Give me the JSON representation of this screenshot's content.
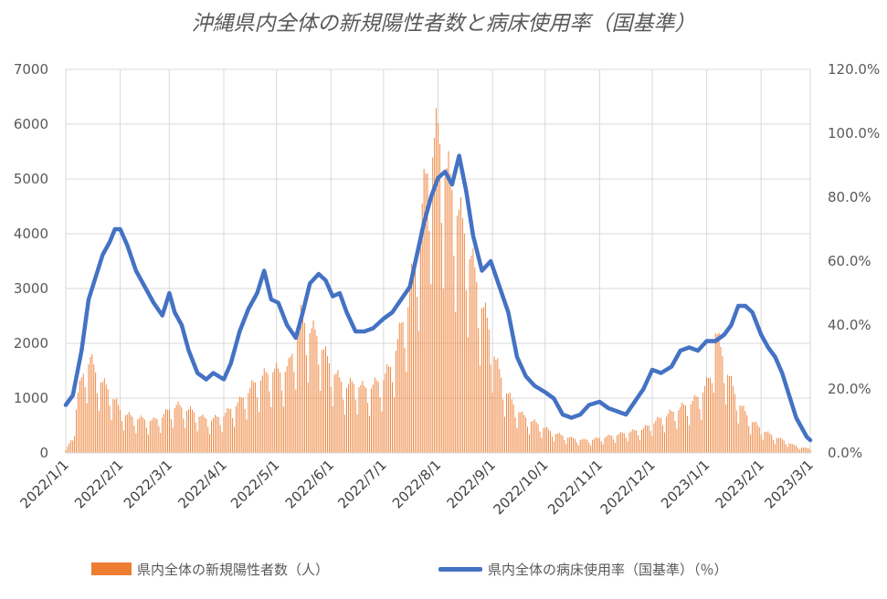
{
  "chart_data": {
    "type": "bar+line",
    "title": "沖縄県内全体の新規陽性者数と病床使用率（国基準）",
    "x_tick_labels": [
      "2022/1/1",
      "2022/2/1",
      "2022/3/1",
      "2022/4/1",
      "2022/5/1",
      "2022/6/1",
      "2022/7/1",
      "2022/8/1",
      "2022/9/1",
      "2022/10/1",
      "2022/11/1",
      "2022/12/1",
      "2023/1/1",
      "2023/2/1",
      "2023/3/1"
    ],
    "x_range": [
      "2022-01-01",
      "2023-03-01"
    ],
    "y_left": {
      "min": 0,
      "max": 7000,
      "ticks": [
        "0",
        "1000",
        "2000",
        "3000",
        "4000",
        "5000",
        "6000",
        "7000"
      ]
    },
    "y_right": {
      "min": 0,
      "max": 120,
      "ticks": [
        "0.0%",
        "20.0%",
        "40.0%",
        "60.0%",
        "80.0%",
        "100.0%",
        "120.0%"
      ]
    },
    "grid": "horizontal",
    "legend_position": "bottom",
    "series": [
      {
        "name": "県内全体の新規陽性者数（人）",
        "type": "bar",
        "axis": "left",
        "color": "#ED7D31",
        "points": [
          [
            "2022-01-01",
            50
          ],
          [
            "2022-01-05",
            300
          ],
          [
            "2022-01-08",
            1100
          ],
          [
            "2022-01-12",
            1600
          ],
          [
            "2022-01-15",
            1750
          ],
          [
            "2022-01-18",
            1500
          ],
          [
            "2022-01-22",
            1300
          ],
          [
            "2022-01-26",
            1150
          ],
          [
            "2022-02-01",
            800
          ],
          [
            "2022-02-05",
            700
          ],
          [
            "2022-02-10",
            650
          ],
          [
            "2022-02-15",
            620
          ],
          [
            "2022-02-20",
            600
          ],
          [
            "2022-02-25",
            680
          ],
          [
            "2022-03-01",
            800
          ],
          [
            "2022-03-05",
            880
          ],
          [
            "2022-03-10",
            820
          ],
          [
            "2022-03-15",
            760
          ],
          [
            "2022-03-20",
            650
          ],
          [
            "2022-03-25",
            620
          ],
          [
            "2022-04-01",
            700
          ],
          [
            "2022-04-05",
            820
          ],
          [
            "2022-04-10",
            950
          ],
          [
            "2022-04-15",
            1150
          ],
          [
            "2022-04-20",
            1350
          ],
          [
            "2022-04-25",
            1450
          ],
          [
            "2022-04-29",
            1550
          ],
          [
            "2022-05-03",
            1500
          ],
          [
            "2022-05-08",
            1600
          ],
          [
            "2022-05-12",
            2100
          ],
          [
            "2022-05-15",
            2500
          ],
          [
            "2022-05-20",
            2300
          ],
          [
            "2022-05-25",
            2150
          ],
          [
            "2022-05-29",
            1800
          ],
          [
            "2022-06-01",
            1600
          ],
          [
            "2022-06-06",
            1350
          ],
          [
            "2022-06-10",
            1250
          ],
          [
            "2022-06-15",
            1300
          ],
          [
            "2022-06-20",
            1200
          ],
          [
            "2022-06-25",
            1250
          ],
          [
            "2022-07-01",
            1400
          ],
          [
            "2022-07-05",
            1600
          ],
          [
            "2022-07-10",
            2200
          ],
          [
            "2022-07-15",
            2800
          ],
          [
            "2022-07-20",
            3800
          ],
          [
            "2022-07-24",
            4800
          ],
          [
            "2022-07-28",
            5600
          ],
          [
            "2022-08-01",
            5900
          ],
          [
            "2022-08-05",
            5300
          ],
          [
            "2022-08-10",
            4800
          ],
          [
            "2022-08-15",
            4200
          ],
          [
            "2022-08-20",
            3600
          ],
          [
            "2022-08-25",
            2900
          ],
          [
            "2022-08-30",
            2300
          ],
          [
            "2022-09-03",
            1700
          ],
          [
            "2022-09-08",
            1200
          ],
          [
            "2022-09-13",
            900
          ],
          [
            "2022-09-18",
            700
          ],
          [
            "2022-09-23",
            600
          ],
          [
            "2022-09-28",
            520
          ],
          [
            "2022-10-03",
            420
          ],
          [
            "2022-10-08",
            350
          ],
          [
            "2022-10-13",
            300
          ],
          [
            "2022-10-18",
            260
          ],
          [
            "2022-10-23",
            240
          ],
          [
            "2022-10-28",
            250
          ],
          [
            "2022-11-02",
            280
          ],
          [
            "2022-11-08",
            320
          ],
          [
            "2022-11-14",
            360
          ],
          [
            "2022-11-20",
            400
          ],
          [
            "2022-11-26",
            450
          ],
          [
            "2022-12-01",
            550
          ],
          [
            "2022-12-06",
            650
          ],
          [
            "2022-12-12",
            750
          ],
          [
            "2022-12-18",
            850
          ],
          [
            "2022-12-24",
            950
          ],
          [
            "2022-12-29",
            1100
          ],
          [
            "2023-01-03",
            1400
          ],
          [
            "2023-01-06",
            2300
          ],
          [
            "2023-01-09",
            1900
          ],
          [
            "2023-01-13",
            1500
          ],
          [
            "2023-01-17",
            1100
          ],
          [
            "2023-01-21",
            850
          ],
          [
            "2023-01-25",
            650
          ],
          [
            "2023-01-30",
            500
          ],
          [
            "2023-02-04",
            380
          ],
          [
            "2023-02-09",
            300
          ],
          [
            "2023-02-14",
            230
          ],
          [
            "2023-02-19",
            150
          ],
          [
            "2023-02-24",
            100
          ],
          [
            "2023-03-01",
            80
          ]
        ]
      },
      {
        "name": "県内全体の病床使用率（国基準）（％）",
        "type": "line",
        "axis": "right",
        "color": "#4472C4",
        "points": [
          [
            "2022-01-01",
            15
          ],
          [
            "2022-01-05",
            18
          ],
          [
            "2022-01-10",
            32
          ],
          [
            "2022-01-14",
            48
          ],
          [
            "2022-01-18",
            55
          ],
          [
            "2022-01-22",
            62
          ],
          [
            "2022-01-26",
            66
          ],
          [
            "2022-01-29",
            70
          ],
          [
            "2022-02-01",
            70
          ],
          [
            "2022-02-05",
            65
          ],
          [
            "2022-02-10",
            57
          ],
          [
            "2022-02-15",
            52
          ],
          [
            "2022-02-20",
            47
          ],
          [
            "2022-02-25",
            43
          ],
          [
            "2022-03-01",
            50
          ],
          [
            "2022-03-04",
            44
          ],
          [
            "2022-03-08",
            40
          ],
          [
            "2022-03-12",
            32
          ],
          [
            "2022-03-17",
            25
          ],
          [
            "2022-03-22",
            23
          ],
          [
            "2022-03-26",
            25
          ],
          [
            "2022-04-01",
            23
          ],
          [
            "2022-04-05",
            28
          ],
          [
            "2022-04-10",
            38
          ],
          [
            "2022-04-15",
            45
          ],
          [
            "2022-04-20",
            50
          ],
          [
            "2022-04-24",
            57
          ],
          [
            "2022-04-28",
            48
          ],
          [
            "2022-05-02",
            47
          ],
          [
            "2022-05-07",
            40
          ],
          [
            "2022-05-12",
            36
          ],
          [
            "2022-05-16",
            44
          ],
          [
            "2022-05-20",
            53
          ],
          [
            "2022-05-25",
            56
          ],
          [
            "2022-05-29",
            54
          ],
          [
            "2022-06-02",
            49
          ],
          [
            "2022-06-06",
            50
          ],
          [
            "2022-06-10",
            44
          ],
          [
            "2022-06-15",
            38
          ],
          [
            "2022-06-20",
            38
          ],
          [
            "2022-06-25",
            39
          ],
          [
            "2022-07-01",
            42
          ],
          [
            "2022-07-06",
            44
          ],
          [
            "2022-07-11",
            48
          ],
          [
            "2022-07-16",
            52
          ],
          [
            "2022-07-20",
            62
          ],
          [
            "2022-07-24",
            72
          ],
          [
            "2022-07-28",
            80
          ],
          [
            "2022-08-01",
            86
          ],
          [
            "2022-08-05",
            88
          ],
          [
            "2022-08-09",
            84
          ],
          [
            "2022-08-13",
            93
          ],
          [
            "2022-08-17",
            82
          ],
          [
            "2022-08-21",
            68
          ],
          [
            "2022-08-26",
            57
          ],
          [
            "2022-08-31",
            60
          ],
          [
            "2022-09-05",
            52
          ],
          [
            "2022-09-10",
            44
          ],
          [
            "2022-09-15",
            30
          ],
          [
            "2022-09-20",
            24
          ],
          [
            "2022-09-25",
            21
          ],
          [
            "2022-10-01",
            19
          ],
          [
            "2022-10-06",
            17
          ],
          [
            "2022-10-11",
            12
          ],
          [
            "2022-10-16",
            11
          ],
          [
            "2022-10-21",
            12
          ],
          [
            "2022-10-26",
            15
          ],
          [
            "2022-11-01",
            16
          ],
          [
            "2022-11-06",
            14
          ],
          [
            "2022-11-11",
            13
          ],
          [
            "2022-11-16",
            12
          ],
          [
            "2022-11-21",
            16
          ],
          [
            "2022-11-26",
            20
          ],
          [
            "2022-12-01",
            26
          ],
          [
            "2022-12-06",
            25
          ],
          [
            "2022-12-12",
            27
          ],
          [
            "2022-12-17",
            32
          ],
          [
            "2022-12-22",
            33
          ],
          [
            "2022-12-27",
            32
          ],
          [
            "2023-01-01",
            35
          ],
          [
            "2023-01-06",
            35
          ],
          [
            "2023-01-11",
            37
          ],
          [
            "2023-01-15",
            40
          ],
          [
            "2023-01-19",
            46
          ],
          [
            "2023-01-23",
            46
          ],
          [
            "2023-01-27",
            44
          ],
          [
            "2023-02-01",
            37
          ],
          [
            "2023-02-05",
            33
          ],
          [
            "2023-02-09",
            30
          ],
          [
            "2023-02-13",
            25
          ],
          [
            "2023-02-17",
            18
          ],
          [
            "2023-02-21",
            11
          ],
          [
            "2023-02-24",
            8
          ],
          [
            "2023-02-27",
            5
          ],
          [
            "2023-03-01",
            4
          ]
        ]
      }
    ]
  }
}
